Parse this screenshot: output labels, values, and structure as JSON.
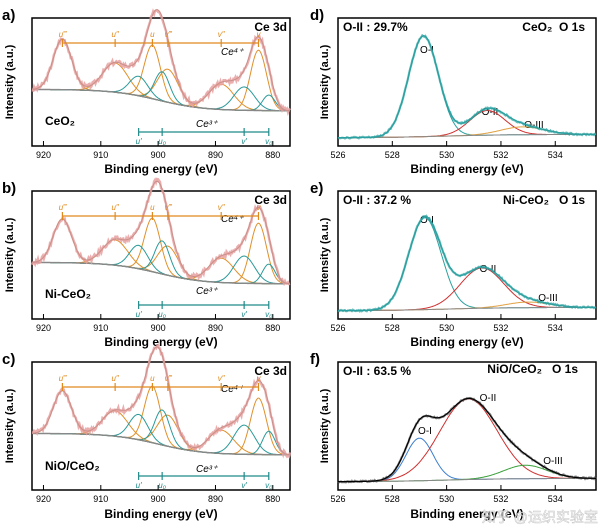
{
  "colors": {
    "raw": "#e8a0a0",
    "envelope": "#c9908a",
    "background": "#888888",
    "ce4": "#e08a1e",
    "ce3": "#1f8a8a",
    "teal_peak": "#2a9a9a",
    "orange_peak": "#e0902a",
    "oi_fit": "#2aa0a0",
    "oi_blue": "#3b7fd0",
    "oii_red": "#d03030",
    "oiii_green": "#3aa03a",
    "oiii_orange": "#e0a040",
    "black": "#000000"
  },
  "panels": {
    "a": {
      "letter": "a)",
      "element": "Ce 3d",
      "sample": "CeO₂",
      "xlabel": "Binding energy (eV)",
      "ylabel": "Intensity (a.u.)",
      "ce4_label": "Ce⁴⁺",
      "ce3_label": "Ce³⁺",
      "ticks": [
        "920",
        "910",
        "900",
        "890",
        "880"
      ]
    },
    "b": {
      "letter": "b)",
      "element": "Ce 3d",
      "sample": "Ni-CeO₂",
      "xlabel": "Binding energy (eV)",
      "ylabel": "Intensity (a.u.)",
      "ce4_label": "Ce⁴⁺",
      "ce3_label": "Ce³⁺",
      "ticks": [
        "920",
        "910",
        "900",
        "890",
        "880"
      ]
    },
    "c": {
      "letter": "c)",
      "element": "Ce 3d",
      "sample": "NiO/CeO₂",
      "xlabel": "Binding energy (eV)",
      "ylabel": "Intensity (a.u.)",
      "ce4_label": "Ce⁴⁺",
      "ce3_label": "Ce³⁺",
      "ticks": [
        "920",
        "910",
        "900",
        "890",
        "880"
      ]
    },
    "d": {
      "letter": "d)",
      "oii_text": "O-II : 29.7%",
      "sample": "CeO₂  O 1s",
      "xlabel": "Binding energy (eV)",
      "ylabel": "Intensity (a.u.)",
      "peak1": "O-I",
      "peak2": "O-II",
      "peak3": "O-III",
      "ticks": [
        "526",
        "528",
        "530",
        "532",
        "534"
      ]
    },
    "e": {
      "letter": "e)",
      "oii_text": "O-II : 37.2 %",
      "sample": "Ni-CeO₂   O 1s",
      "xlabel": "Binding energy (eV)",
      "ylabel": "Intensity (a.u.)",
      "peak1": "O-I",
      "peak2": "O-II",
      "peak3": "O-III",
      "ticks": [
        "526",
        "528",
        "530",
        "532",
        "534"
      ]
    },
    "f": {
      "letter": "f)",
      "oii_text": "O-II : 63.5 %",
      "sample": "NiO/CeO₂   O 1s",
      "xlabel": "Binding energy (eV)",
      "ylabel": "Intensity (a.u.)",
      "peak1": "O-I",
      "peak2": "O-II",
      "peak3": "O-III",
      "ticks": [
        "526",
        "528",
        "530",
        "532",
        "534"
      ]
    }
  },
  "ce_peak_labels_top": [
    "u‴",
    "u″",
    "u",
    "v‴",
    "v″",
    "v"
  ],
  "ce_peak_labels_bottom": [
    "u′",
    "u₀",
    "v′",
    "v₀"
  ],
  "watermark": "知乎 @运织实验室",
  "chart_data": [
    {
      "panel": "a",
      "type": "line",
      "xlim": [
        922,
        877
      ],
      "xlabel": "Binding energy (eV)",
      "ylabel": "Intensity (a.u.)",
      "ce4_peaks": [
        {
          "pos": 916.7,
          "h": 0.52,
          "w": 1.6
        },
        {
          "pos": 907.5,
          "h": 0.3,
          "w": 2.2
        },
        {
          "pos": 901.0,
          "h": 0.55,
          "w": 1.4
        },
        {
          "pos": 898.3,
          "h": 0.34,
          "w": 1.8
        },
        {
          "pos": 889.0,
          "h": 0.26,
          "w": 2.2
        },
        {
          "pos": 882.5,
          "h": 0.62,
          "w": 1.4
        }
      ],
      "ce3_peaks": [
        {
          "pos": 903.4,
          "h": 0.2,
          "w": 1.6
        },
        {
          "pos": 899.3,
          "h": 0.3,
          "w": 1.3
        },
        {
          "pos": 885.0,
          "h": 0.24,
          "w": 1.8
        },
        {
          "pos": 880.7,
          "h": 0.16,
          "w": 1.1
        }
      ]
    },
    {
      "panel": "b",
      "type": "line",
      "xlim": [
        922,
        877
      ],
      "xlabel": "Binding energy (eV)",
      "ylabel": "Intensity (a.u.)",
      "ce4_peaks": [
        {
          "pos": 916.7,
          "h": 0.45,
          "w": 1.6
        },
        {
          "pos": 907.5,
          "h": 0.26,
          "w": 2.2
        },
        {
          "pos": 901.0,
          "h": 0.55,
          "w": 1.4
        },
        {
          "pos": 898.3,
          "h": 0.3,
          "w": 1.8
        },
        {
          "pos": 889.0,
          "h": 0.25,
          "w": 2.2
        },
        {
          "pos": 882.5,
          "h": 0.62,
          "w": 1.4
        }
      ],
      "ce3_peaks": [
        {
          "pos": 903.4,
          "h": 0.24,
          "w": 1.6
        },
        {
          "pos": 899.3,
          "h": 0.34,
          "w": 1.3
        },
        {
          "pos": 885.0,
          "h": 0.28,
          "w": 1.8
        },
        {
          "pos": 880.7,
          "h": 0.2,
          "w": 1.1
        }
      ]
    },
    {
      "panel": "c",
      "type": "line",
      "xlim": [
        922,
        877
      ],
      "xlabel": "Binding energy (eV)",
      "ylabel": "Intensity (a.u.)",
      "ce4_peaks": [
        {
          "pos": 916.7,
          "h": 0.44,
          "w": 1.6
        },
        {
          "pos": 907.5,
          "h": 0.26,
          "w": 2.2
        },
        {
          "pos": 901.0,
          "h": 0.58,
          "w": 1.4
        },
        {
          "pos": 898.3,
          "h": 0.32,
          "w": 1.8
        },
        {
          "pos": 889.0,
          "h": 0.24,
          "w": 2.2
        },
        {
          "pos": 882.5,
          "h": 0.58,
          "w": 1.4
        }
      ],
      "ce3_peaks": [
        {
          "pos": 903.4,
          "h": 0.26,
          "w": 1.6
        },
        {
          "pos": 899.3,
          "h": 0.36,
          "w": 1.3
        },
        {
          "pos": 885.0,
          "h": 0.3,
          "w": 1.8
        },
        {
          "pos": 880.7,
          "h": 0.24,
          "w": 1.1
        }
      ]
    },
    {
      "panel": "d",
      "type": "line",
      "xlim": [
        526,
        535.5
      ],
      "xlabel": "Binding energy (eV)",
      "ylabel": "Intensity (a.u.)",
      "oii_percent": 29.7,
      "peaks": [
        {
          "name": "O-I",
          "pos": 529.15,
          "h": 0.9,
          "w": 0.55
        },
        {
          "name": "O-II",
          "pos": 531.5,
          "h": 0.22,
          "w": 0.65
        },
        {
          "name": "O-III",
          "pos": 532.8,
          "h": 0.07,
          "w": 0.8
        }
      ]
    },
    {
      "panel": "e",
      "type": "line",
      "xlim": [
        526,
        535.5
      ],
      "xlabel": "Binding energy (eV)",
      "ylabel": "Intensity (a.u.)",
      "oii_percent": 37.2,
      "peaks": [
        {
          "name": "O-I",
          "pos": 529.2,
          "h": 0.82,
          "w": 0.6
        },
        {
          "name": "O-II",
          "pos": 531.3,
          "h": 0.36,
          "w": 0.8
        },
        {
          "name": "O-III",
          "pos": 533.0,
          "h": 0.05,
          "w": 0.8
        }
      ]
    },
    {
      "panel": "f",
      "type": "line",
      "xlim": [
        526,
        535.5
      ],
      "xlabel": "Binding energy (eV)",
      "ylabel": "Intensity (a.u.)",
      "oii_percent": 63.5,
      "peaks": [
        {
          "name": "O-I",
          "pos": 529.0,
          "h": 0.38,
          "w": 0.5
        },
        {
          "name": "O-II",
          "pos": 530.8,
          "h": 0.72,
          "w": 1.05
        },
        {
          "name": "O-III",
          "pos": 532.9,
          "h": 0.12,
          "w": 0.8
        }
      ]
    }
  ]
}
